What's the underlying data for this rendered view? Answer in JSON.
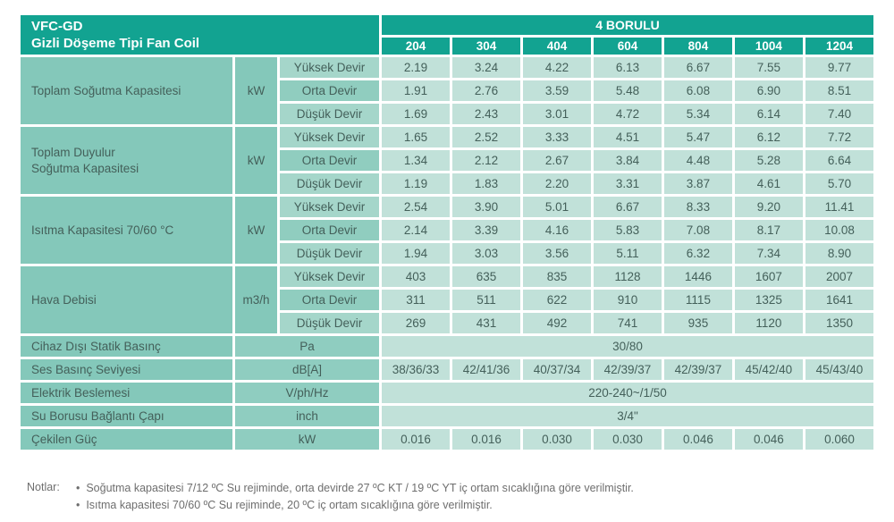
{
  "header": {
    "title_line1": "VFC-GD",
    "title_line2": "Gizli Döşeme Tipi Fan Coil",
    "series_label": "4 BORULU",
    "models": [
      "204",
      "304",
      "404",
      "604",
      "804",
      "1004",
      "1204"
    ]
  },
  "speed_labels": [
    "Yüksek Devir",
    "Orta Devir",
    "Düşük Devir"
  ],
  "groups": [
    {
      "label": "Toplam Soğutma Kapasitesi",
      "unit": "kW",
      "rows": [
        [
          "2.19",
          "3.24",
          "4.22",
          "6.13",
          "6.67",
          "7.55",
          "9.77"
        ],
        [
          "1.91",
          "2.76",
          "3.59",
          "5.48",
          "6.08",
          "6.90",
          "8.51"
        ],
        [
          "1.69",
          "2.43",
          "3.01",
          "4.72",
          "5.34",
          "6.14",
          "7.40"
        ]
      ]
    },
    {
      "label": "Toplam Duyulur\nSoğutma Kapasitesi",
      "unit": "kW",
      "rows": [
        [
          "1.65",
          "2.52",
          "3.33",
          "4.51",
          "5.47",
          "6.12",
          "7.72"
        ],
        [
          "1.34",
          "2.12",
          "2.67",
          "3.84",
          "4.48",
          "5.28",
          "6.64"
        ],
        [
          "1.19",
          "1.83",
          "2.20",
          "3.31",
          "3.87",
          "4.61",
          "5.70"
        ]
      ]
    },
    {
      "label": "Isıtma Kapasitesi  70/60 °C",
      "unit": "kW",
      "rows": [
        [
          "2.54",
          "3.90",
          "5.01",
          "6.67",
          "8.33",
          "9.20",
          "11.41"
        ],
        [
          "2.14",
          "3.39",
          "4.16",
          "5.83",
          "7.08",
          "8.17",
          "10.08"
        ],
        [
          "1.94",
          "3.03",
          "3.56",
          "5.11",
          "6.32",
          "7.34",
          "8.90"
        ]
      ]
    },
    {
      "label": "Hava Debisi",
      "unit": "m3/h",
      "rows": [
        [
          "403",
          "635",
          "835",
          "1128",
          "1446",
          "1607",
          "2007"
        ],
        [
          "311",
          "511",
          "622",
          "910",
          "1115",
          "1325",
          "1641"
        ],
        [
          "269",
          "431",
          "492",
          "741",
          "935",
          "1120",
          "1350"
        ]
      ]
    }
  ],
  "single_rows": [
    {
      "label": "Cihaz Dışı Statik Basınç",
      "unit": "Pa",
      "span_value": "30/80"
    },
    {
      "label": "Ses Basınç Seviyesi",
      "unit": "dB[A]",
      "values": [
        "38/36/33",
        "42/41/36",
        "40/37/34",
        "42/39/37",
        "42/39/37",
        "45/42/40",
        "45/43/40"
      ]
    },
    {
      "label": "Elektrik Beslemesi",
      "unit": "V/ph/Hz",
      "span_value": "220-240~/1/50"
    },
    {
      "label": "Su Borusu Bağlantı Çapı",
      "unit": "inch",
      "span_value": "3/4\""
    },
    {
      "label": "Çekilen Güç",
      "unit": "kW",
      "values": [
        "0.016",
        "0.016",
        "0.030",
        "0.030",
        "0.046",
        "0.046",
        "0.060"
      ]
    }
  ],
  "notes": {
    "label": "Notlar:",
    "items": [
      "Soğutma kapasitesi 7/12 ºC Su rejiminde, orta devirde 27 ºC KT / 19 ºC YT iç ortam sıcaklığına göre verilmiştir.",
      "Isıtma kapasitesi 70/60 ºC Su rejiminde, 20 ºC iç ortam sıcaklığına göre verilmiştir."
    ]
  },
  "colors": {
    "header_teal": "#12a391",
    "label_teal": "#84c8ba",
    "speed_light": "#a5d6ca",
    "speed_mid": "#90cdbf",
    "data_light": "#c1e1d9",
    "text_dark": "#44605a",
    "notes_gray": "#6e6e6e"
  }
}
